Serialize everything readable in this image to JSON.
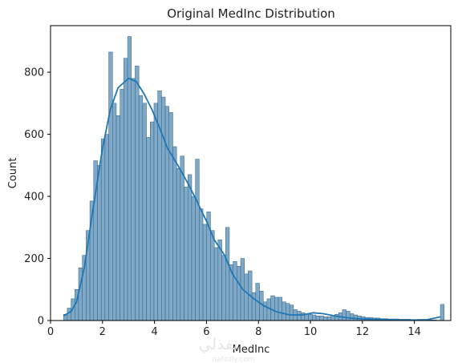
{
  "chart_data": {
    "type": "bar",
    "subtype": "histogram-with-kde",
    "title": "Original MedInc Distribution",
    "xlabel": "MedInc",
    "ylabel": "Count",
    "xlim": [
      0.0,
      15.4
    ],
    "ylim": [
      0,
      950
    ],
    "xticks": [
      0,
      2,
      4,
      6,
      8,
      10,
      12,
      14
    ],
    "yticks": [
      0,
      200,
      400,
      600,
      800
    ],
    "bin_start": 0.5,
    "bin_width": 0.145,
    "bar_color": "#7fa9c7",
    "bar_edge_color": "#2f5f86",
    "line_color": "#1f77b4",
    "grid": false,
    "legend": false,
    "values": [
      20,
      40,
      70,
      100,
      170,
      210,
      290,
      385,
      515,
      500,
      585,
      600,
      865,
      700,
      660,
      745,
      845,
      915,
      780,
      820,
      725,
      700,
      590,
      640,
      700,
      740,
      720,
      690,
      670,
      560,
      490,
      530,
      430,
      470,
      400,
      520,
      360,
      310,
      350,
      290,
      235,
      260,
      210,
      300,
      180,
      190,
      175,
      200,
      150,
      160,
      90,
      120,
      95,
      60,
      70,
      80,
      75,
      75,
      60,
      55,
      50,
      35,
      30,
      25,
      22,
      20,
      18,
      15,
      15,
      12,
      12,
      15,
      20,
      25,
      35,
      30,
      22,
      18,
      15,
      12,
      10,
      10,
      8,
      8,
      6,
      6,
      5,
      5,
      5,
      4,
      4,
      4,
      3,
      3,
      3,
      2,
      2,
      2,
      2,
      1,
      52
    ],
    "kde": [
      [
        0.5,
        15
      ],
      [
        0.8,
        30
      ],
      [
        1.0,
        60
      ],
      [
        1.3,
        170
      ],
      [
        1.6,
        340
      ],
      [
        2.0,
        555
      ],
      [
        2.3,
        680
      ],
      [
        2.6,
        750
      ],
      [
        3.0,
        780
      ],
      [
        3.3,
        770
      ],
      [
        3.6,
        730
      ],
      [
        3.9,
        680
      ],
      [
        4.2,
        620
      ],
      [
        4.5,
        555
      ],
      [
        4.9,
        500
      ],
      [
        5.3,
        440
      ],
      [
        5.6,
        390
      ],
      [
        6.0,
        320
      ],
      [
        6.3,
        260
      ],
      [
        6.7,
        210
      ],
      [
        7.0,
        150
      ],
      [
        7.4,
        100
      ],
      [
        7.8,
        72
      ],
      [
        8.2,
        48
      ],
      [
        8.7,
        28
      ],
      [
        9.2,
        18
      ],
      [
        9.7,
        18
      ],
      [
        10.1,
        25
      ],
      [
        10.5,
        22
      ],
      [
        11.0,
        14
      ],
      [
        11.5,
        8
      ],
      [
        12.0,
        5
      ],
      [
        12.5,
        4
      ],
      [
        13.0,
        3
      ],
      [
        13.5,
        2
      ],
      [
        14.0,
        2
      ],
      [
        14.5,
        3
      ],
      [
        14.8,
        8
      ],
      [
        15.0,
        12
      ]
    ]
  },
  "watermark": {
    "arabic": "نفذلي",
    "latin": "nafezly.com"
  }
}
